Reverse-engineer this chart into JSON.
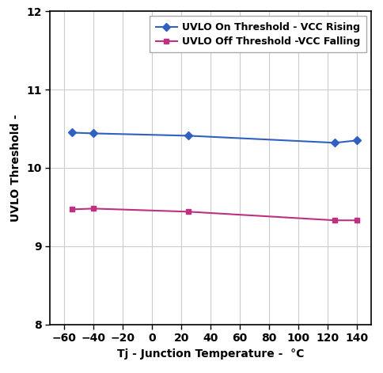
{
  "blue_x": [
    -55,
    -40,
    25,
    125,
    140
  ],
  "blue_y": [
    10.45,
    10.44,
    10.41,
    10.32,
    10.35
  ],
  "pink_x": [
    -55,
    -40,
    25,
    125,
    140
  ],
  "pink_y": [
    9.47,
    9.48,
    9.44,
    9.33,
    9.33
  ],
  "blue_color": "#3060c0",
  "pink_color": "#c03080",
  "blue_label": "UVLO On Threshold - VCC Rising",
  "pink_label": "UVLO Off Threshold -VCC Falling",
  "xlabel": "Tj - Junction Temperature -  °C",
  "ylabel": "UVLO Threshold -",
  "xlim": [
    -70,
    150
  ],
  "ylim": [
    8,
    12
  ],
  "xticks": [
    -60,
    -40,
    -20,
    0,
    20,
    40,
    60,
    80,
    100,
    120,
    140
  ],
  "yticks": [
    8,
    9,
    10,
    11,
    12
  ],
  "grid_color": "#cccccc",
  "bg_color": "#ffffff",
  "label_fontsize": 10,
  "tick_fontsize": 10,
  "legend_fontsize": 9
}
